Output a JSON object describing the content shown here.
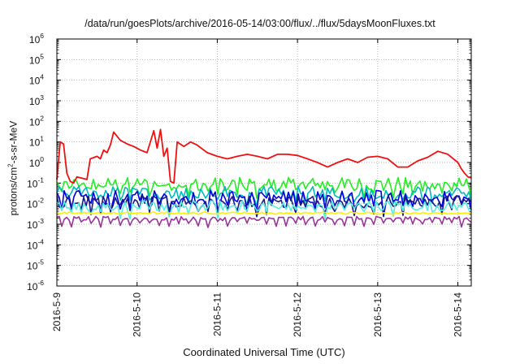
{
  "chart_data": {
    "type": "line",
    "title": "/data/run/goesPlots/archive/2016-05-14/03:00/flux/../flux/5daysMoonFluxes.txt",
    "xlabel": "Coordinated Universal Time (UTC)",
    "ylabel": {
      "prefix": "protons/cm",
      "sup": "2",
      "suffix": "-s-sr-MeV"
    },
    "xlim": [
      "2016-05-09T00:00",
      "2016-05-14T04:00"
    ],
    "x_ticks": [
      "2016-5-9",
      "2016-5-10",
      "2016-5-11",
      "2016-5-12",
      "2016-5-13",
      "2016-5-14"
    ],
    "y_scale": "log",
    "ylim": [
      1e-06,
      1000000.0
    ],
    "y_ticks": [
      {
        "base": "10",
        "exp": "-6"
      },
      {
        "base": "10",
        "exp": "-5"
      },
      {
        "base": "10",
        "exp": "-4"
      },
      {
        "base": "10",
        "exp": "-3"
      },
      {
        "base": "10",
        "exp": "-2"
      },
      {
        "base": "10",
        "exp": "-1"
      },
      {
        "base": "10",
        "exp": "0"
      },
      {
        "base": "10",
        "exp": "1"
      },
      {
        "base": "10",
        "exp": "2"
      },
      {
        "base": "10",
        "exp": "3"
      },
      {
        "base": "10",
        "exp": "4"
      },
      {
        "base": "10",
        "exp": "5"
      },
      {
        "base": "10",
        "exp": "6"
      }
    ],
    "grid": true,
    "legend": "none",
    "series": [
      {
        "color": "#ee1111",
        "x": [
          "2016-05-09T00:00",
          "2016-05-09T01:00",
          "2016-05-09T02:00",
          "2016-05-09T03:00",
          "2016-05-09T04:00",
          "2016-05-09T05:00",
          "2016-05-09T06:00",
          "2016-05-09T09:00",
          "2016-05-09T10:00",
          "2016-05-09T12:00",
          "2016-05-09T13:00",
          "2016-05-09T14:00",
          "2016-05-09T15:00",
          "2016-05-09T16:00",
          "2016-05-09T17:00",
          "2016-05-09T19:00",
          "2016-05-09T21:00",
          "2016-05-09T23:00",
          "2016-05-10T01:00",
          "2016-05-10T03:00",
          "2016-05-10T05:00",
          "2016-05-10T06:00",
          "2016-05-10T07:00",
          "2016-05-10T08:00",
          "2016-05-10T09:00",
          "2016-05-10T10:00",
          "2016-05-10T11:00",
          "2016-05-10T12:00",
          "2016-05-10T14:00",
          "2016-05-10T16:00",
          "2016-05-10T18:00",
          "2016-05-10T21:00",
          "2016-05-11T00:00",
          "2016-05-11T03:00",
          "2016-05-11T06:00",
          "2016-05-11T09:00",
          "2016-05-11T12:00",
          "2016-05-11T15:00",
          "2016-05-11T18:00",
          "2016-05-11T21:00",
          "2016-05-12T00:00",
          "2016-05-12T03:00",
          "2016-05-12T06:00",
          "2016-05-12T09:00",
          "2016-05-12T12:00",
          "2016-05-12T15:00",
          "2016-05-12T18:00",
          "2016-05-12T21:00",
          "2016-05-13T00:00",
          "2016-05-13T03:00",
          "2016-05-13T06:00",
          "2016-05-13T09:00",
          "2016-05-13T12:00",
          "2016-05-13T15:00",
          "2016-05-13T18:00",
          "2016-05-13T21:00",
          "2016-05-14T00:00",
          "2016-05-14T01:00",
          "2016-05-14T02:00",
          "2016-05-14T03:00",
          "2016-05-14T04:00"
        ],
        "y": [
          0.15,
          10,
          8,
          0.3,
          0.12,
          0.1,
          0.2,
          0.15,
          1.5,
          2,
          1.5,
          4,
          3,
          7,
          30,
          12,
          8,
          6,
          4,
          3,
          35,
          5,
          40,
          2,
          5,
          0.12,
          0.1,
          10,
          6,
          10,
          7,
          3,
          2,
          1.5,
          2,
          2.5,
          2,
          1.5,
          2.5,
          2.5,
          2.2,
          1.5,
          1,
          0.6,
          1,
          1.5,
          1,
          1.8,
          2,
          1.5,
          0.6,
          0.6,
          1.2,
          1.8,
          3.5,
          2.5,
          1,
          0.5,
          0.3,
          0.2,
          0.18
        ]
      },
      {
        "color": "#22ee22",
        "base": 0.09,
        "amp": 0.32,
        "dip": 0.3
      },
      {
        "color": "#00bbbb",
        "base": 0.035,
        "amp": 0.3,
        "dip": 0.3
      },
      {
        "color": "#0000dd",
        "base": 0.02,
        "amp": 0.35,
        "dip": 0.4
      },
      {
        "color": "#1a1a88",
        "base": 0.013,
        "amp": 0.3,
        "dip": 0.35
      },
      {
        "color": "#55eedd",
        "base": 0.008,
        "amp": 0.25,
        "dip": 0.3
      },
      {
        "color": "#ffee00",
        "base": 0.0035,
        "amp": 0.05,
        "dip": 0.02
      },
      {
        "color": "#993399",
        "base": 0.0019,
        "amp": 0.1,
        "dip": 0.25
      }
    ]
  }
}
